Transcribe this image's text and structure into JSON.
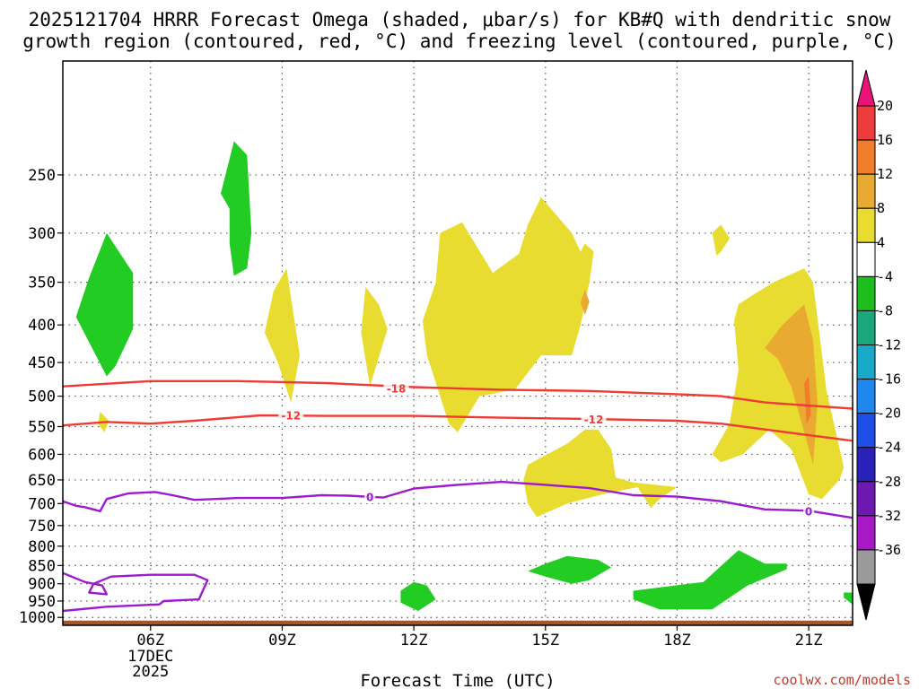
{
  "chart_data": {
    "type": "heatmap",
    "title_line1": "2025121704 HRRR Forecast Omega (shaded, μbar/s) for KB#Q with dendritic snow",
    "title_line2": "growth region (contoured, red, °C) and freezing level (contoured, purple, °C)",
    "xlabel": "Forecast Time (UTC)",
    "x_ticks": [
      "06Z",
      "09Z",
      "12Z",
      "15Z",
      "18Z",
      "21Z"
    ],
    "x_tick_hours": [
      6,
      9,
      12,
      15,
      18,
      21
    ],
    "x_date_lines": [
      "17DEC",
      "2025"
    ],
    "xlim": [
      4,
      22
    ],
    "y_ticks": [
      250,
      300,
      350,
      400,
      450,
      500,
      550,
      600,
      650,
      700,
      750,
      800,
      850,
      900,
      950,
      1000
    ],
    "ylim": [
      1025,
      175
    ],
    "yscale": "log-pressure",
    "colorbar_labels": [
      "20",
      "16",
      "12",
      "8",
      "4",
      "-4",
      "-8",
      "-12",
      "-16",
      "-20",
      "-24",
      "-28",
      "-32",
      "-36"
    ],
    "colorbar_colors": [
      "#e8147a",
      "#ee3c3c",
      "#f07c2c",
      "#e8aa30",
      "#e8dc30",
      "#ffffff",
      "#1fbe1f",
      "#1aa87a",
      "#18a8c8",
      "#1e88ee",
      "#1e4ee8",
      "#2a22b8",
      "#6e18b4",
      "#a818c4",
      "#9a9a9a",
      "#000000"
    ],
    "omega_regions": [
      {
        "color": "#22cc22",
        "outline": [
          [
            5.0,
            470
          ],
          [
            4.3,
            390
          ],
          [
            4.6,
            345
          ],
          [
            5.0,
            300
          ],
          [
            5.6,
            340
          ],
          [
            5.6,
            405
          ],
          [
            5.2,
            455
          ]
        ]
      },
      {
        "color": "#22cc22",
        "outline": [
          [
            7.6,
            265
          ],
          [
            7.9,
            225
          ],
          [
            8.2,
            235
          ],
          [
            8.3,
            300
          ],
          [
            8.2,
            335
          ],
          [
            7.9,
            343
          ],
          [
            7.8,
            310
          ],
          [
            7.8,
            278
          ]
        ]
      },
      {
        "color": "#22cc22",
        "outline": [
          [
            11.7,
            920
          ],
          [
            12.0,
            895
          ],
          [
            12.3,
            905
          ],
          [
            12.5,
            945
          ],
          [
            12.1,
            980
          ],
          [
            11.7,
            955
          ]
        ]
      },
      {
        "color": "#22cc22",
        "outline": [
          [
            15.0,
            845
          ],
          [
            15.5,
            825
          ],
          [
            16.2,
            835
          ],
          [
            16.5,
            855
          ],
          [
            16.0,
            890
          ],
          [
            15.6,
            900
          ],
          [
            15.0,
            880
          ],
          [
            14.6,
            865
          ]
        ]
      },
      {
        "color": "#22cc22",
        "outline": [
          [
            17.0,
            920
          ],
          [
            18.6,
            895
          ],
          [
            19.4,
            810
          ],
          [
            20.0,
            845
          ],
          [
            20.5,
            845
          ],
          [
            20.5,
            860
          ],
          [
            19.6,
            905
          ],
          [
            18.8,
            975
          ],
          [
            17.6,
            975
          ],
          [
            17.0,
            945
          ]
        ]
      },
      {
        "color": "#22cc22",
        "outline": [
          [
            21.8,
            925
          ],
          [
            22.0,
            925
          ],
          [
            22.0,
            960
          ],
          [
            21.8,
            940
          ]
        ]
      },
      {
        "color": "#e8dc30",
        "outline": [
          [
            4.85,
            525
          ],
          [
            5.05,
            540
          ],
          [
            4.95,
            560
          ],
          [
            4.8,
            545
          ]
        ]
      },
      {
        "color": "#e8dc30",
        "outline": [
          [
            8.8,
            360
          ],
          [
            9.1,
            335
          ],
          [
            9.4,
            440
          ],
          [
            9.2,
            510
          ],
          [
            8.9,
            450
          ],
          [
            8.6,
            410
          ]
        ]
      },
      {
        "color": "#e8dc30",
        "outline": [
          [
            10.9,
            355
          ],
          [
            11.2,
            375
          ],
          [
            11.4,
            405
          ],
          [
            11.0,
            485
          ],
          [
            10.8,
            410
          ]
        ]
      },
      {
        "color": "#e8dc30",
        "outline": [
          [
            12.6,
            300
          ],
          [
            13.1,
            290
          ],
          [
            13.8,
            340
          ],
          [
            14.4,
            320
          ],
          [
            14.6,
            292
          ],
          [
            14.9,
            268
          ],
          [
            15.6,
            300
          ],
          [
            15.8,
            318
          ],
          [
            15.9,
            310
          ],
          [
            16.1,
            318
          ],
          [
            16.0,
            350
          ],
          [
            15.8,
            400
          ],
          [
            15.6,
            440
          ],
          [
            15.4,
            440
          ],
          [
            14.9,
            440
          ],
          [
            14.3,
            490
          ],
          [
            13.5,
            500
          ],
          [
            13.0,
            560
          ],
          [
            12.8,
            545
          ],
          [
            12.3,
            440
          ],
          [
            12.2,
            395
          ],
          [
            12.5,
            350
          ]
        ]
      },
      {
        "color": "#e8dc30",
        "outline": [
          [
            18.8,
            300
          ],
          [
            19.0,
            292
          ],
          [
            19.2,
            305
          ],
          [
            19.0,
            318
          ],
          [
            18.9,
            322
          ]
        ]
      },
      {
        "color": "#e8dc30",
        "outline": [
          [
            19.3,
            395
          ],
          [
            19.4,
            375
          ],
          [
            19.7,
            365
          ],
          [
            20.2,
            350
          ],
          [
            20.9,
            335
          ],
          [
            21.1,
            350
          ],
          [
            21.4,
            490
          ],
          [
            21.8,
            625
          ],
          [
            21.7,
            650
          ],
          [
            21.3,
            690
          ],
          [
            21.0,
            680
          ],
          [
            20.6,
            590
          ],
          [
            20.1,
            555
          ],
          [
            19.5,
            600
          ],
          [
            19.0,
            615
          ],
          [
            18.8,
            600
          ],
          [
            19.2,
            545
          ],
          [
            19.4,
            460
          ]
        ]
      },
      {
        "color": "#e8dc30",
        "outline": [
          [
            14.6,
            620
          ],
          [
            15.5,
            580
          ],
          [
            15.9,
            555
          ],
          [
            16.2,
            555
          ],
          [
            16.5,
            590
          ],
          [
            16.6,
            645
          ],
          [
            17.0,
            655
          ],
          [
            18.0,
            665
          ],
          [
            18.0,
            665
          ],
          [
            17.6,
            690
          ],
          [
            17.4,
            710
          ],
          [
            17.1,
            665
          ],
          [
            16.3,
            680
          ],
          [
            15.5,
            700
          ],
          [
            14.8,
            730
          ],
          [
            14.6,
            700
          ],
          [
            14.5,
            650
          ]
        ]
      },
      {
        "color": "#e8aa30",
        "outline": [
          [
            15.8,
            373
          ],
          [
            15.9,
            358
          ],
          [
            16.0,
            372
          ],
          [
            15.9,
            388
          ]
        ]
      },
      {
        "color": "#e8aa30",
        "outline": [
          [
            20.0,
            430
          ],
          [
            20.4,
            400
          ],
          [
            20.9,
            375
          ],
          [
            21.1,
            420
          ],
          [
            21.2,
            510
          ],
          [
            21.1,
            620
          ],
          [
            20.9,
            560
          ],
          [
            20.6,
            485
          ],
          [
            20.3,
            445
          ]
        ]
      },
      {
        "color": "#f07c2c",
        "outline": [
          [
            20.9,
            480
          ],
          [
            21.0,
            470
          ],
          [
            21.05,
            530
          ],
          [
            20.95,
            545
          ]
        ]
      }
    ],
    "dgz_lines": [
      {
        "label": "-18",
        "label_at": [
          11.6,
          488
        ],
        "points": [
          [
            4.0,
            485
          ],
          [
            6.0,
            477
          ],
          [
            8.0,
            477
          ],
          [
            10.0,
            480
          ],
          [
            12.0,
            486
          ],
          [
            14.0,
            490
          ],
          [
            16.0,
            492
          ],
          [
            18.0,
            497
          ],
          [
            19.0,
            500
          ],
          [
            20.0,
            510
          ],
          [
            21.0,
            515
          ],
          [
            22.0,
            520
          ]
        ]
      },
      {
        "label": "-12",
        "label_at": [
          9.2,
          531
        ],
        "points": [
          [
            4.0,
            548
          ],
          [
            5.0,
            542
          ],
          [
            6.0,
            545
          ],
          [
            7.0,
            540
          ],
          [
            8.5,
            531
          ],
          [
            10.0,
            532
          ],
          [
            12.0,
            532
          ],
          [
            14.0,
            535
          ],
          [
            16.0,
            537
          ],
          [
            18.0,
            540
          ],
          [
            19.0,
            545
          ],
          [
            20.0,
            555
          ],
          [
            21.0,
            565
          ],
          [
            22.0,
            575
          ]
        ]
      },
      {
        "label": "-12",
        "label_at": [
          16.1,
          538
        ],
        "points": []
      }
    ],
    "freezing_lines": [
      {
        "label": "0",
        "label_at": [
          11.0,
          686
        ],
        "points": [
          [
            4.0,
            695
          ],
          [
            4.3,
            705
          ],
          [
            4.5,
            708
          ],
          [
            4.85,
            717
          ],
          [
            5.0,
            690
          ],
          [
            5.5,
            678
          ],
          [
            6.1,
            675
          ],
          [
            6.5,
            682
          ],
          [
            7.0,
            692
          ],
          [
            8.0,
            688
          ],
          [
            9.0,
            688
          ],
          [
            9.9,
            682
          ],
          [
            10.5,
            683
          ],
          [
            11.3,
            687
          ],
          [
            12.0,
            668
          ],
          [
            13.0,
            660
          ],
          [
            14.0,
            654
          ],
          [
            15.0,
            660
          ],
          [
            16.0,
            667
          ],
          [
            17.0,
            682
          ],
          [
            18.0,
            685
          ],
          [
            19.0,
            695
          ],
          [
            20.0,
            713
          ],
          [
            21.0,
            716
          ],
          [
            22.0,
            732
          ]
        ]
      },
      {
        "label": "0",
        "label_at": [
          21.0,
          717
        ],
        "points": []
      },
      {
        "label": "",
        "label_at": null,
        "points": [
          [
            4.0,
            980
          ],
          [
            5.0,
            967
          ],
          [
            6.2,
            960
          ],
          [
            6.3,
            950
          ],
          [
            7.1,
            945
          ],
          [
            7.3,
            890
          ],
          [
            7.0,
            875
          ],
          [
            6.0,
            875
          ],
          [
            5.1,
            880
          ],
          [
            4.7,
            900
          ],
          [
            4.6,
            925
          ],
          [
            5.0,
            930
          ],
          [
            4.9,
            905
          ],
          [
            4.5,
            895
          ],
          [
            4.0,
            870
          ]
        ]
      }
    ],
    "terrain": {
      "color": "#a8552e",
      "top_pressure": 1010
    }
  },
  "credit": "coolwx.com/models"
}
